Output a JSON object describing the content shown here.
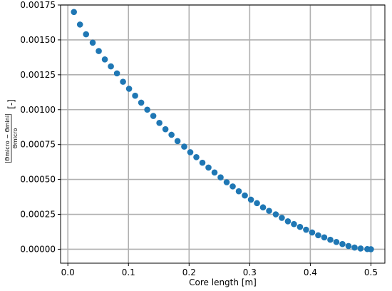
{
  "chart_data": {
    "type": "scatter",
    "title": "",
    "xlabel": "Core length [m]",
    "ylabel": {
      "numerator": "|Θmicro − Θmini|",
      "denominator": "Θmicro",
      "unit": "[-]"
    },
    "xlim": [
      -0.012,
      0.523
    ],
    "ylim": [
      -0.0001,
      0.00175
    ],
    "xticks": [
      "0.0",
      "0.1",
      "0.2",
      "0.3",
      "0.4",
      "0.5"
    ],
    "xtick_values": [
      0.0,
      0.1,
      0.2,
      0.3,
      0.4,
      0.5
    ],
    "yticks": [
      "0.00000",
      "0.00025",
      "0.00050",
      "0.00075",
      "0.00100",
      "0.00125",
      "0.00150",
      "0.00175"
    ],
    "ytick_values": [
      0,
      0.00025,
      0.0005,
      0.00075,
      0.001,
      0.00125,
      0.0015,
      0.00175
    ],
    "grid": true,
    "marker_color": "#1f77b4",
    "series": [
      {
        "x": [
          0.01,
          0.02,
          0.03,
          0.041,
          0.051,
          0.061,
          0.071,
          0.081,
          0.091,
          0.101,
          0.111,
          0.121,
          0.131,
          0.141,
          0.151,
          0.161,
          0.171,
          0.181,
          0.192,
          0.202,
          0.212,
          0.222,
          0.232,
          0.242,
          0.252,
          0.262,
          0.272,
          0.282,
          0.292,
          0.302,
          0.312,
          0.322,
          0.332,
          0.343,
          0.353,
          0.363,
          0.373,
          0.383,
          0.393,
          0.403,
          0.413,
          0.423,
          0.433,
          0.443,
          0.453,
          0.463,
          0.473,
          0.483,
          0.494,
          0.5
        ],
        "y": [
          0.0017,
          0.00161,
          0.00154,
          0.00148,
          0.00142,
          0.00136,
          0.00131,
          0.00126,
          0.0012,
          0.00115,
          0.0011,
          0.00105,
          0.001,
          0.000955,
          0.000905,
          0.00086,
          0.00082,
          0.000775,
          0.000735,
          0.000695,
          0.00066,
          0.00062,
          0.000585,
          0.00055,
          0.000515,
          0.00048,
          0.00045,
          0.000415,
          0.000385,
          0.000355,
          0.00033,
          0.0003,
          0.000275,
          0.00025,
          0.000225,
          0.0002,
          0.00018,
          0.00016,
          0.00014,
          0.00012,
          0.0001,
          8.5e-05,
          6.8e-05,
          5.2e-05,
          3.7e-05,
          2.3e-05,
          1.2e-05,
          5e-06,
          1e-06,
          0.0
        ]
      }
    ]
  }
}
